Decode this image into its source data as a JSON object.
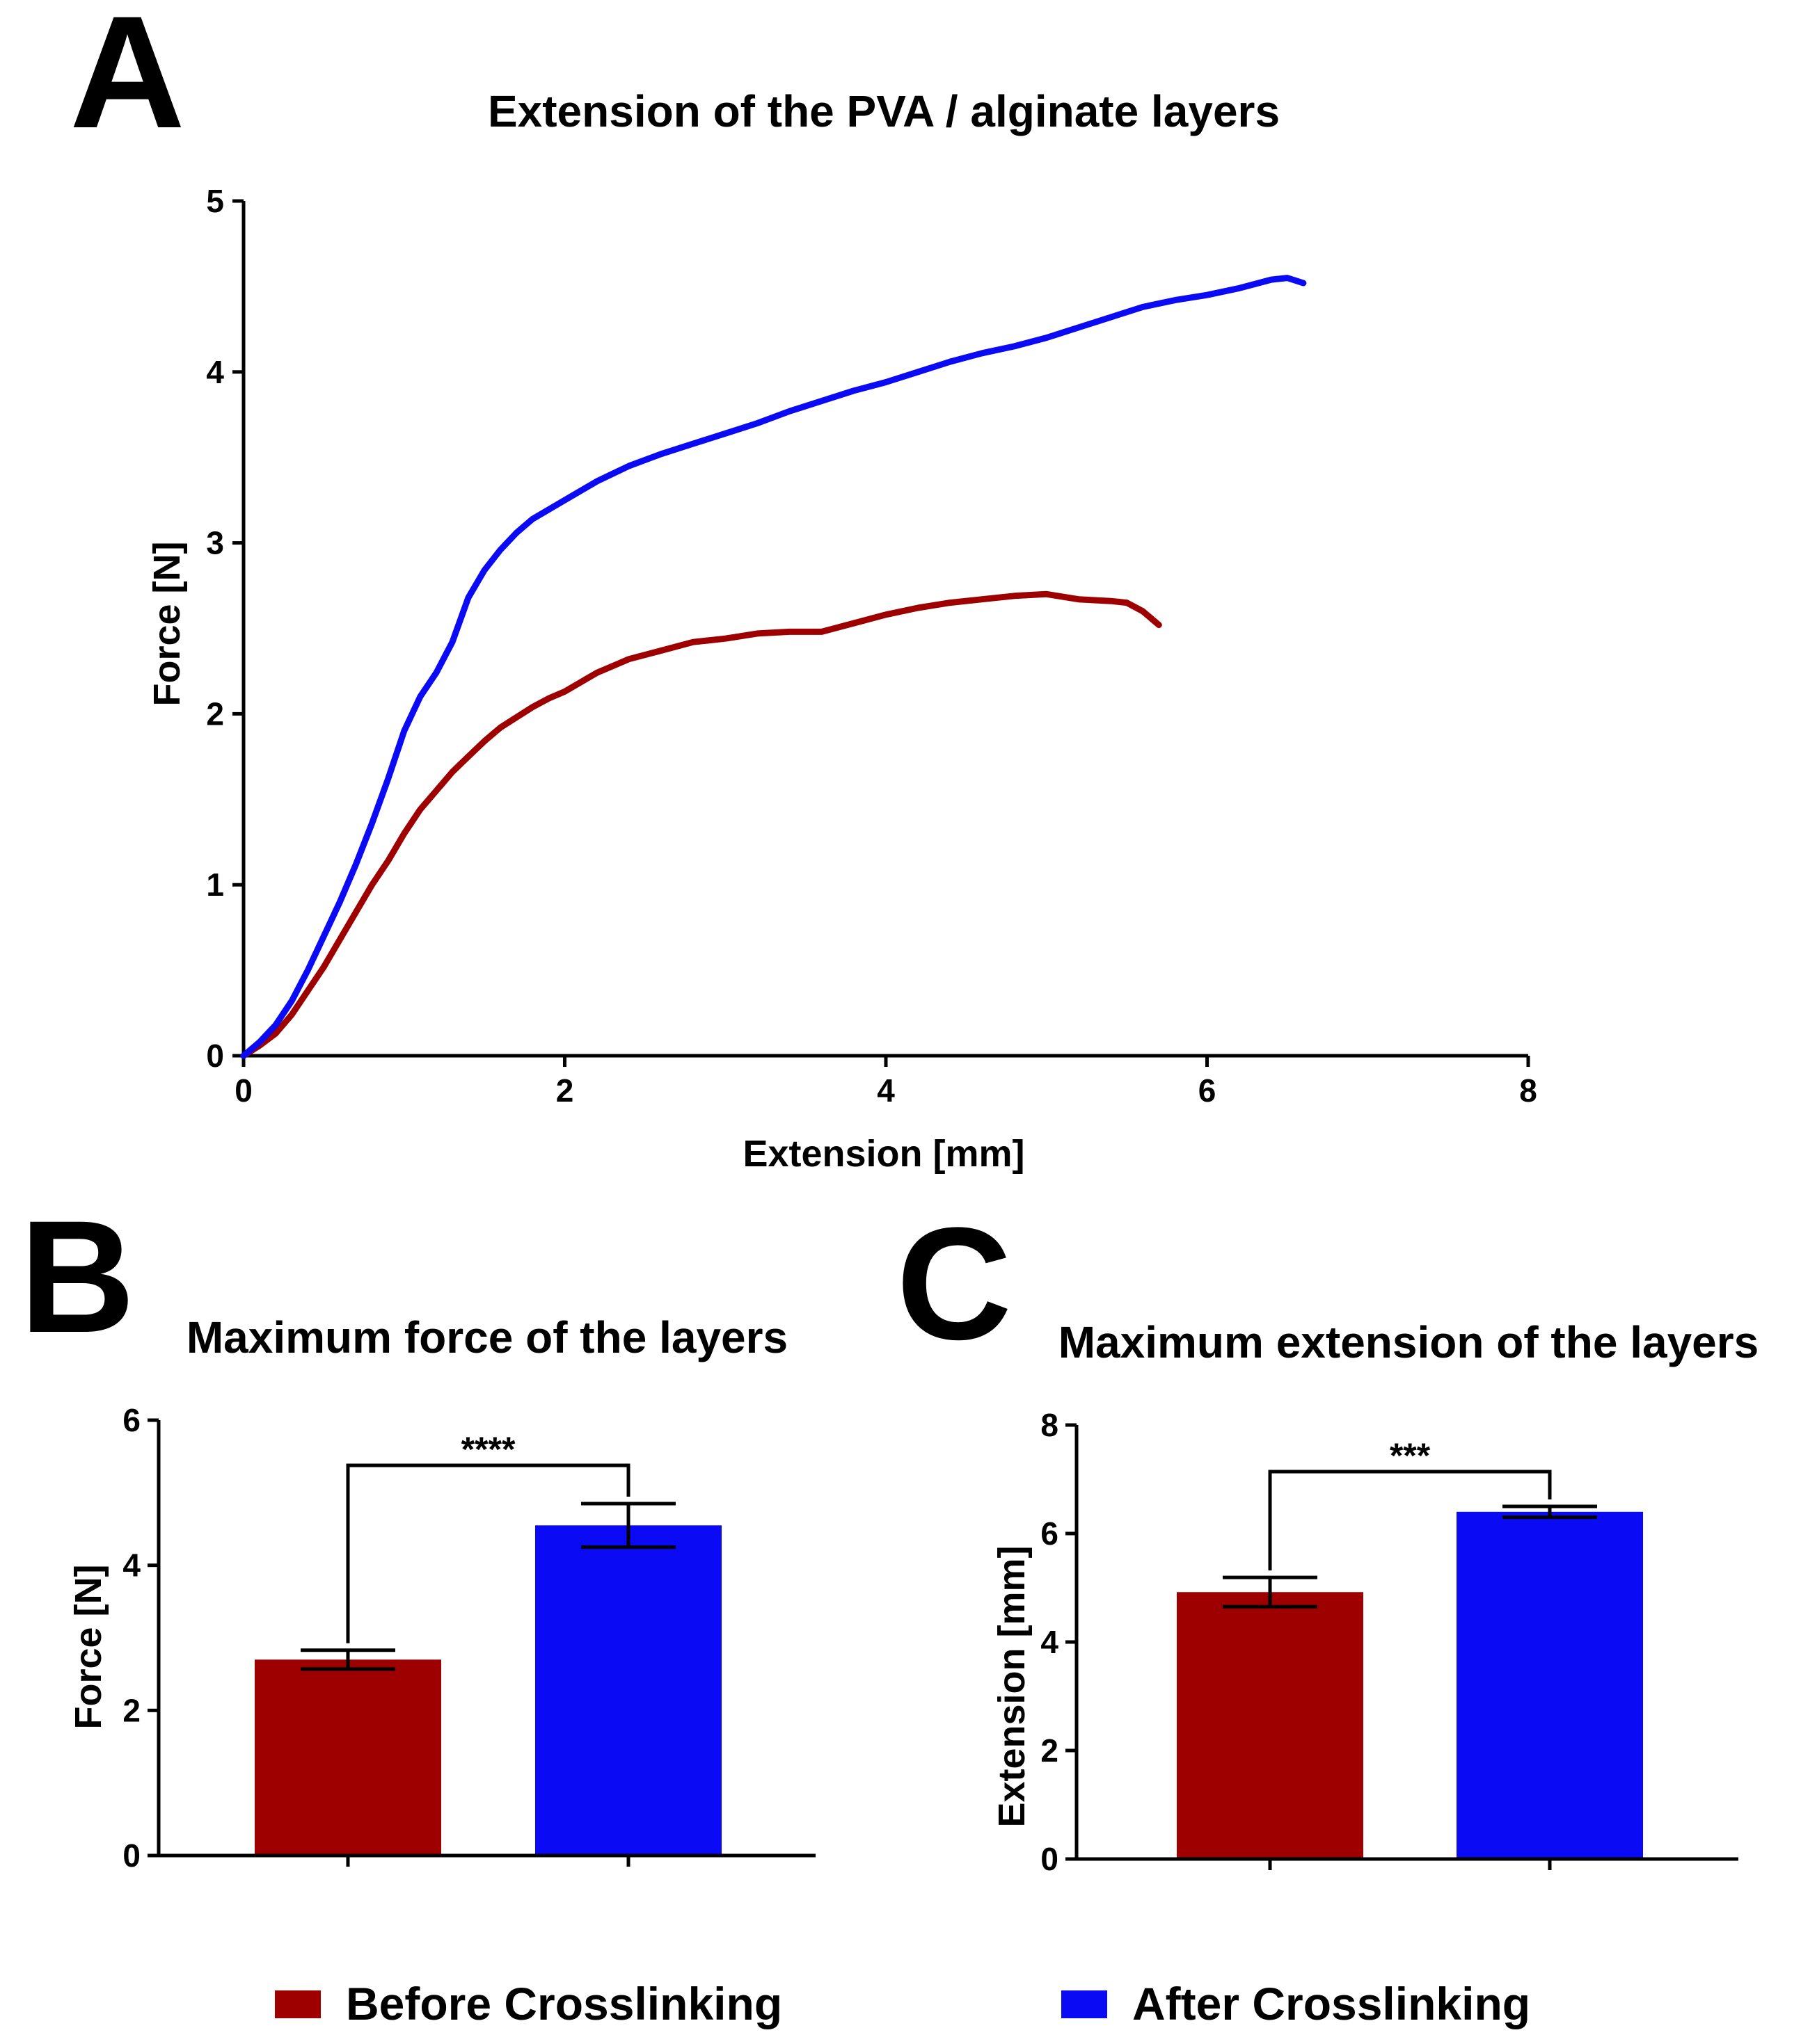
{
  "colors": {
    "before": "#9e0000",
    "after": "#0a0af5",
    "axis": "#000000"
  },
  "chart_data": [
    {
      "panel": "A",
      "type": "line",
      "title": "Extension of the PVA / alginate layers",
      "xlabel": "Extension [mm]",
      "ylabel": "Force [N]",
      "xlim": [
        0,
        8
      ],
      "ylim": [
        0,
        5
      ],
      "xticks": [
        "0",
        "2",
        "4",
        "6",
        "8"
      ],
      "yticks": [
        "0",
        "1",
        "2",
        "3",
        "4",
        "5"
      ],
      "series": [
        {
          "name": "Before Crosslinking",
          "color": "#9e0000",
          "x": [
            0,
            0.1,
            0.2,
            0.3,
            0.4,
            0.5,
            0.6,
            0.7,
            0.8,
            0.9,
            1.0,
            1.1,
            1.2,
            1.3,
            1.4,
            1.5,
            1.6,
            1.7,
            1.8,
            1.9,
            2.0,
            2.2,
            2.4,
            2.6,
            2.8,
            3.0,
            3.2,
            3.4,
            3.6,
            3.8,
            4.0,
            4.2,
            4.4,
            4.6,
            4.8,
            5.0,
            5.2,
            5.4,
            5.5,
            5.6,
            5.7
          ],
          "y": [
            0,
            0.06,
            0.13,
            0.24,
            0.38,
            0.52,
            0.68,
            0.84,
            1.0,
            1.14,
            1.3,
            1.44,
            1.55,
            1.66,
            1.75,
            1.84,
            1.92,
            1.98,
            2.04,
            2.09,
            2.13,
            2.24,
            2.32,
            2.37,
            2.42,
            2.44,
            2.47,
            2.48,
            2.48,
            2.53,
            2.58,
            2.62,
            2.65,
            2.67,
            2.69,
            2.7,
            2.67,
            2.66,
            2.65,
            2.6,
            2.52
          ]
        },
        {
          "name": "After Crosslinking",
          "color": "#0a0af5",
          "x": [
            0,
            0.1,
            0.2,
            0.3,
            0.4,
            0.5,
            0.6,
            0.7,
            0.8,
            0.9,
            1.0,
            1.1,
            1.2,
            1.3,
            1.4,
            1.5,
            1.6,
            1.7,
            1.8,
            2.0,
            2.2,
            2.4,
            2.6,
            2.8,
            3.0,
            3.2,
            3.4,
            3.6,
            3.8,
            4.0,
            4.2,
            4.4,
            4.6,
            4.8,
            5.0,
            5.2,
            5.4,
            5.6,
            5.8,
            6.0,
            6.2,
            6.4,
            6.5,
            6.6
          ],
          "y": [
            0,
            0.08,
            0.18,
            0.32,
            0.5,
            0.7,
            0.9,
            1.12,
            1.36,
            1.62,
            1.9,
            2.1,
            2.24,
            2.42,
            2.68,
            2.84,
            2.96,
            3.06,
            3.14,
            3.25,
            3.36,
            3.45,
            3.52,
            3.58,
            3.64,
            3.7,
            3.77,
            3.83,
            3.89,
            3.94,
            4.0,
            4.06,
            4.11,
            4.15,
            4.2,
            4.26,
            4.32,
            4.38,
            4.42,
            4.45,
            4.49,
            4.54,
            4.55,
            4.52
          ]
        }
      ]
    },
    {
      "panel": "B",
      "type": "bar",
      "title": "Maximum force of the layers",
      "ylabel": "Force [N]",
      "ylim": [
        0,
        6
      ],
      "yticks": [
        "0",
        "2",
        "4",
        "6"
      ],
      "categories": [
        "Before Crosslinking",
        "After Crosslinking"
      ],
      "values": [
        2.7,
        4.55
      ],
      "errors": [
        0.13,
        0.3
      ],
      "significance": "****"
    },
    {
      "panel": "C",
      "type": "bar",
      "title": "Maximum extension of the layers",
      "ylabel": "Extension [mm]",
      "ylim": [
        0,
        8
      ],
      "yticks": [
        "0",
        "2",
        "4",
        "6",
        "8"
      ],
      "categories": [
        "Before Crosslinking",
        "After Crosslinking"
      ],
      "values": [
        4.92,
        6.4
      ],
      "errors": [
        0.27,
        0.1
      ],
      "significance": "***"
    }
  ],
  "legend": [
    {
      "label": "Before Crosslinking",
      "color": "#9e0000"
    },
    {
      "label": "After Crosslinking",
      "color": "#0a0af5"
    }
  ]
}
